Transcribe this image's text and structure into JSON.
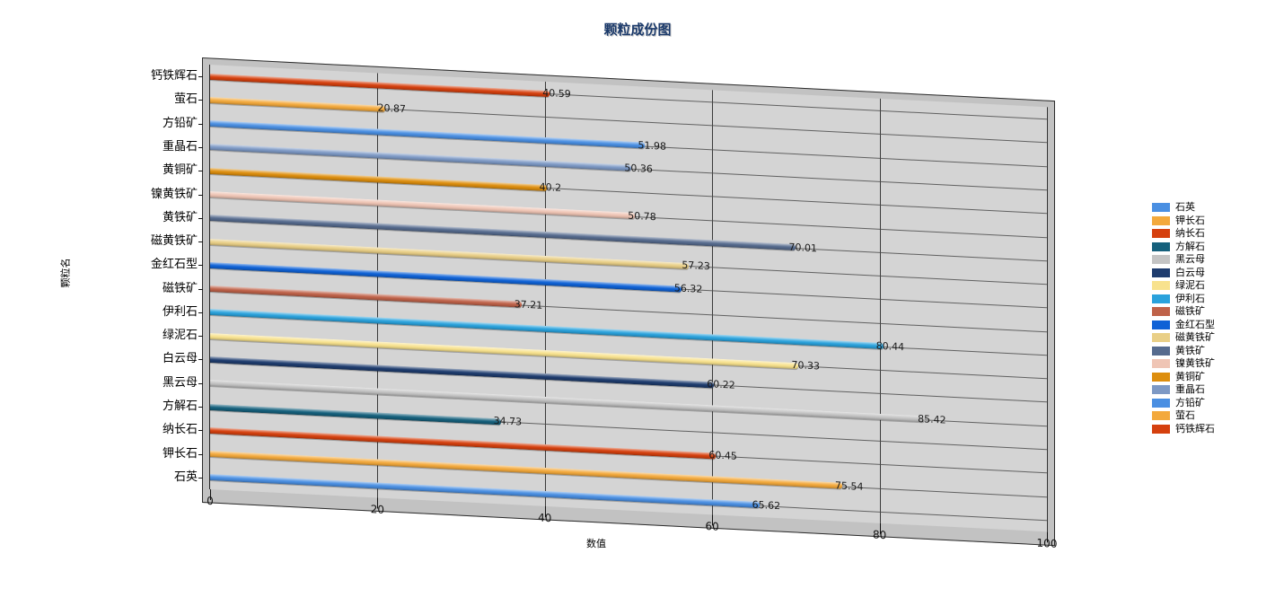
{
  "title": "颗粒成份图",
  "x_axis": {
    "title": "数值",
    "ticks": [
      0,
      20,
      40,
      60,
      80,
      100
    ],
    "min": 0,
    "max": 100
  },
  "y_axis": {
    "title": "颗粒名"
  },
  "chart_data": {
    "type": "bar",
    "orientation": "horizontal",
    "title": "颗粒成份图",
    "xlabel": "数值",
    "ylabel": "颗粒名",
    "xlim": [
      0,
      100
    ],
    "grid": true,
    "legend_position": "right",
    "rows_top_to_bottom": [
      {
        "category": "钙铁辉石",
        "value": 40.59,
        "label": "40.59",
        "color": "#d5400e"
      },
      {
        "category": "萤石",
        "value": 20.87,
        "label": "20.87",
        "color": "#f3a93c"
      },
      {
        "category": "方铅矿",
        "value": 51.98,
        "label": "51.98",
        "color": "#4a8fe2"
      },
      {
        "category": "重晶石",
        "value": 50.36,
        "label": "50.36",
        "color": "#7d99c5"
      },
      {
        "category": "黄铜矿",
        "value": 40.2,
        "label": "40.2",
        "color": "#dd8e0e"
      },
      {
        "category": "镍黄铁矿",
        "value": 50.78,
        "label": "50.78",
        "color": "#efc5b5"
      },
      {
        "category": "黄铁矿",
        "value": 70.01,
        "label": "70.01",
        "color": "#566b8e"
      },
      {
        "category": "磁黄铁矿",
        "value": 57.23,
        "label": "57.23",
        "color": "#e9cf87"
      },
      {
        "category": "金红石型",
        "value": 56.32,
        "label": "56.32",
        "color": "#0f62d6"
      },
      {
        "category": "磁铁矿",
        "value": 37.21,
        "label": "37.21",
        "color": "#bf6249"
      },
      {
        "category": "伊利石",
        "value": 80.44,
        "label": "80.44",
        "color": "#2aa2dc"
      },
      {
        "category": "绿泥石",
        "value": 70.33,
        "label": "70.33",
        "color": "#f8e28e"
      },
      {
        "category": "白云母",
        "value": 60.22,
        "label": "60.22",
        "color": "#1e3c6e"
      },
      {
        "category": "黑云母",
        "value": 85.42,
        "label": "85.42",
        "color": "#c4c4c4"
      },
      {
        "category": "方解石",
        "value": 34.73,
        "label": "34.73",
        "color": "#15607c"
      },
      {
        "category": "纳长石",
        "value": 60.45,
        "label": "60.45",
        "color": "#d5400e"
      },
      {
        "category": "钾长石",
        "value": 75.54,
        "label": "75.54",
        "color": "#f3a93c"
      },
      {
        "category": "石英",
        "value": 65.62,
        "label": "65.62",
        "color": "#4a8fe2"
      }
    ]
  },
  "legend": {
    "items": [
      {
        "label": "石英",
        "color": "#4a8fe2"
      },
      {
        "label": "钾长石",
        "color": "#f3a93c"
      },
      {
        "label": "纳长石",
        "color": "#d5400e"
      },
      {
        "label": "方解石",
        "color": "#15607c"
      },
      {
        "label": "黑云母",
        "color": "#c4c4c4"
      },
      {
        "label": "白云母",
        "color": "#1e3c6e"
      },
      {
        "label": "绿泥石",
        "color": "#f8e28e"
      },
      {
        "label": "伊利石",
        "color": "#2aa2dc"
      },
      {
        "label": "磁铁矿",
        "color": "#bf6249"
      },
      {
        "label": "金红石型",
        "color": "#0f62d6"
      },
      {
        "label": "磁黄铁矿",
        "color": "#e9cf87"
      },
      {
        "label": "黄铁矿",
        "color": "#566b8e"
      },
      {
        "label": "镍黄铁矿",
        "color": "#efc5b5"
      },
      {
        "label": "黄铜矿",
        "color": "#dd8e0e"
      },
      {
        "label": "重晶石",
        "color": "#7d99c5"
      },
      {
        "label": "方铅矿",
        "color": "#4a8fe2"
      },
      {
        "label": "萤石",
        "color": "#f3a93c"
      },
      {
        "label": "钙铁辉石",
        "color": "#d5400e"
      }
    ]
  },
  "colors": {
    "plot_bg": "#d4d4d4",
    "frame": "#c2c2c2",
    "grid_line": "#3a3a3a",
    "row_line": "#4c4c4c",
    "title": "#1b3a6b"
  }
}
